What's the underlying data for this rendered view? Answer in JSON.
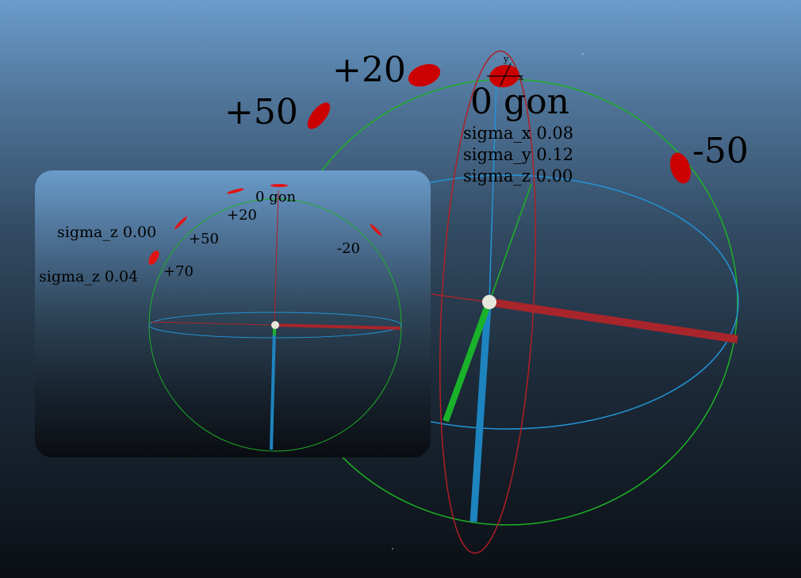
{
  "main_view": {
    "labels": {
      "angle_plus20": "+20",
      "angle_plus50": "+50",
      "angle_zero": "0 gon",
      "angle_minus50": "-50",
      "sigma_x": "sigma_x 0.08",
      "sigma_y": "sigma_y 0.12",
      "sigma_z": "sigma_z 0.00",
      "axis_y": "y",
      "axis_x": "x"
    },
    "colors": {
      "x_axis": "#a8252b",
      "y_axis": "#1ab22a",
      "z_axis": "#1d84bf",
      "great_circle_green": "#1db125",
      "great_circle_blue": "#2394d6",
      "great_circle_red": "#b02024",
      "error_ellipse": "#cc0000",
      "origin": "#e6e6dc"
    }
  },
  "inset_view": {
    "labels": {
      "angle_zero": "0 gon",
      "angle_plus20": "+20",
      "angle_plus50": "+50",
      "angle_plus70": "+70",
      "angle_minus20": "-20",
      "sigma_z_top": "sigma_z 0.00",
      "sigma_z_bottom": "sigma_z 0.04"
    },
    "colors": {
      "panel_top": "#6a9ccb",
      "panel_bottom": "#0b0f15",
      "error_ellipse": "#e11414"
    }
  }
}
